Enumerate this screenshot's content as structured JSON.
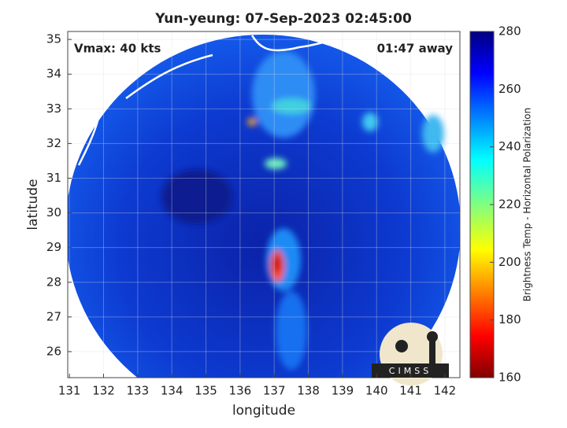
{
  "map": {
    "title": "Yun-yeung: 07-Sep-2023 02:45:00",
    "xlabel": "longitude",
    "ylabel": "latitude",
    "xlim": [
      130.95,
      142.44
    ],
    "ylim": [
      25.25,
      35.23
    ],
    "xticks": [
      131,
      132,
      133,
      134,
      135,
      136,
      137,
      138,
      139,
      140,
      141,
      142
    ],
    "yticks": [
      26,
      27,
      28,
      29,
      30,
      31,
      32,
      33,
      34,
      35
    ],
    "grid": true,
    "annotations": [
      "Vmax: 40 kts",
      "01:47 away"
    ],
    "logo": "CIMSS",
    "colorbar": {
      "label": "Brightness Temp - Horizontal Polarization",
      "lim": [
        160,
        280
      ],
      "ticks": [
        160,
        180,
        200,
        220,
        240,
        260,
        280
      ]
    }
  }
}
